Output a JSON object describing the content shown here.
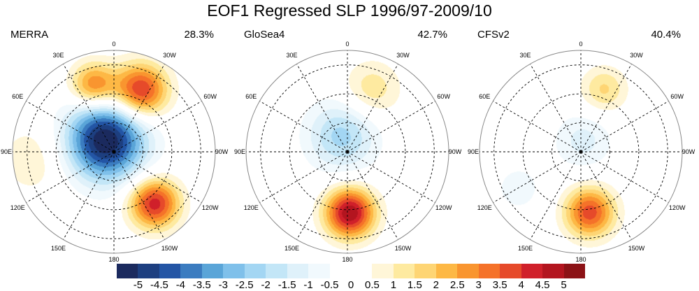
{
  "title": "EOF1 Regressed SLP 1996/97-2009/10",
  "longitude_labels": [
    "0",
    "30W",
    "60W",
    "90W",
    "120W",
    "150W",
    "180",
    "150E",
    "120E",
    "90E",
    "60E",
    "30E"
  ],
  "panels": [
    {
      "name": "MERRA",
      "percent": "28.3%",
      "anomalies": [
        {
          "lon_w": -37,
          "lat": 80,
          "amp": -5.6,
          "sigma": 19
        },
        {
          "lon_w": 23,
          "lat": 44,
          "amp": 4.3,
          "sigma": 13
        },
        {
          "lon_w": -17,
          "lat": 42,
          "amp": 3.2,
          "sigma": 11
        },
        {
          "lon_w": 142,
          "lat": 45,
          "amp": 4.3,
          "sigma": 12
        },
        {
          "lon_w": -95,
          "lat": 35,
          "amp": 0.9,
          "sigma": 18
        }
      ]
    },
    {
      "name": "GloSea4",
      "percent": "42.7%",
      "anomalies": [
        {
          "lon_w": -20,
          "lat": 78,
          "amp": -2.2,
          "sigma": 17
        },
        {
          "lon_w": 178,
          "lat": 48,
          "amp": 5.0,
          "sigma": 12
        },
        {
          "lon_w": 21,
          "lat": 44,
          "amp": 1.4,
          "sigma": 14
        }
      ]
    },
    {
      "name": "CFSv2",
      "percent": "40.4%",
      "anomalies": [
        {
          "lon_w": 10,
          "lat": 82,
          "amp": -1.2,
          "sigma": 14
        },
        {
          "lon_w": 172,
          "lat": 48,
          "amp": 3.8,
          "sigma": 12
        },
        {
          "lon_w": 20,
          "lat": 44,
          "amp": 1.6,
          "sigma": 11
        },
        {
          "lon_w": -120,
          "lat": 40,
          "amp": -0.7,
          "sigma": 14
        }
      ]
    }
  ],
  "colorbar": {
    "labels": [
      "-5",
      "-4.5",
      "-4",
      "-3.5",
      "-3",
      "-2.5",
      "-2",
      "-1.5",
      "-1",
      "-0.5",
      "0",
      "0.5",
      "1",
      "1.5",
      "2",
      "2.5",
      "3",
      "3.5",
      "4",
      "4.5",
      "5"
    ],
    "colors": [
      "#1b2a5e",
      "#1d3f80",
      "#2355a5",
      "#3b7cc0",
      "#5aa5d8",
      "#7fc0ea",
      "#a3d6f3",
      "#c3e6f7",
      "#dff1fa",
      "#f1f9fd",
      "#ffffff",
      "#ffffff",
      "#fff6d8",
      "#feeaa0",
      "#fed574",
      "#fdb845",
      "#f9952f",
      "#f57229",
      "#e64a2a",
      "#d0202a",
      "#b3151f",
      "#8c1216"
    ]
  }
}
